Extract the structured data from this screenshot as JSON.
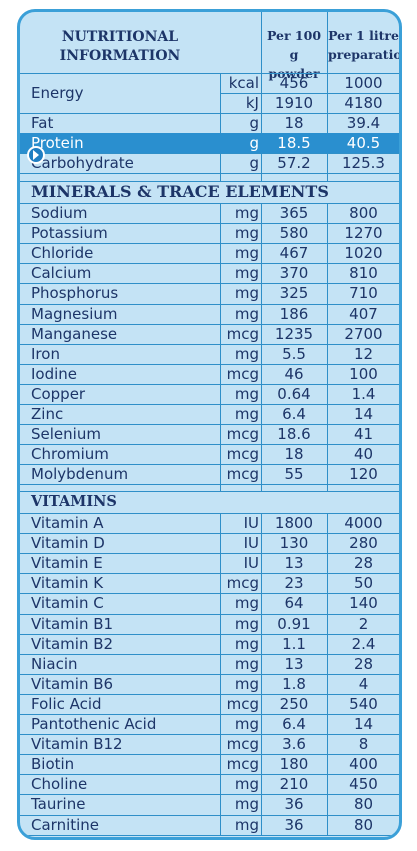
{
  "header": {
    "title_line1": "NUTRITIONAL",
    "title_line2": "INFORMATION",
    "col1_line1": "Per 100 g",
    "col1_line2": "powder",
    "col2_line1": "Per 1 litre",
    "col2_line2": "preparation"
  },
  "energy": {
    "name": "Energy",
    "rows": [
      {
        "unit": "kcal",
        "v1": "456",
        "v2": "1000"
      },
      {
        "unit": "kJ",
        "v1": "1910",
        "v2": "4180"
      }
    ]
  },
  "macros": [
    {
      "name": "Fat",
      "unit": "g",
      "v1": "18",
      "v2": "39.4"
    },
    {
      "name": "Protein",
      "unit": "g",
      "v1": "18.5",
      "v2": "40.5",
      "highlight": true
    },
    {
      "name": "Carbohydrate",
      "unit": "g",
      "v1": "57.2",
      "v2": "125.3"
    }
  ],
  "minerals_title": "MINERALS & TRACE ELEMENTS",
  "minerals": [
    {
      "name": "Sodium",
      "unit": "mg",
      "v1": "365",
      "v2": "800"
    },
    {
      "name": "Potassium",
      "unit": "mg",
      "v1": "580",
      "v2": "1270"
    },
    {
      "name": "Chloride",
      "unit": "mg",
      "v1": "467",
      "v2": "1020"
    },
    {
      "name": "Calcium",
      "unit": "mg",
      "v1": "370",
      "v2": "810"
    },
    {
      "name": "Phosphorus",
      "unit": "mg",
      "v1": "325",
      "v2": "710"
    },
    {
      "name": "Magnesium",
      "unit": "mg",
      "v1": "186",
      "v2": "407"
    },
    {
      "name": "Manganese",
      "unit": "mcg",
      "v1": "1235",
      "v2": "2700"
    },
    {
      "name": "Iron",
      "unit": "mg",
      "v1": "5.5",
      "v2": "12"
    },
    {
      "name": "Iodine",
      "unit": "mcg",
      "v1": "46",
      "v2": "100"
    },
    {
      "name": "Copper",
      "unit": "mg",
      "v1": "0.64",
      "v2": "1.4"
    },
    {
      "name": "Zinc",
      "unit": "mg",
      "v1": "6.4",
      "v2": "14"
    },
    {
      "name": "Selenium",
      "unit": "mcg",
      "v1": "18.6",
      "v2": "41"
    },
    {
      "name": "Chromium",
      "unit": "mcg",
      "v1": "18",
      "v2": "40"
    },
    {
      "name": "Molybdenum",
      "unit": "mcg",
      "v1": "55",
      "v2": "120"
    }
  ],
  "vitamins_title": "VITAMINS",
  "vitamins": [
    {
      "name": "Vitamin A",
      "unit": "IU",
      "v1": "1800",
      "v2": "4000"
    },
    {
      "name": "Vitamin D",
      "unit": "IU",
      "v1": "130",
      "v2": "280"
    },
    {
      "name": "Vitamin E",
      "unit": "IU",
      "v1": "13",
      "v2": "28"
    },
    {
      "name": "Vitamin K",
      "unit": "mcg",
      "v1": "23",
      "v2": "50"
    },
    {
      "name": "Vitamin C",
      "unit": "mg",
      "v1": "64",
      "v2": "140"
    },
    {
      "name": "Vitamin B1",
      "unit": "mg",
      "v1": "0.91",
      "v2": "2"
    },
    {
      "name": "Vitamin B2",
      "unit": "mg",
      "v1": "1.1",
      "v2": "2.4"
    },
    {
      "name": "Niacin",
      "unit": "mg",
      "v1": "13",
      "v2": "28"
    },
    {
      "name": "Vitamin B6",
      "unit": "mg",
      "v1": "1.8",
      "v2": "4"
    },
    {
      "name": "Folic Acid",
      "unit": "mcg",
      "v1": "250",
      "v2": "540"
    },
    {
      "name": "Pantothenic Acid",
      "unit": "mg",
      "v1": "6.4",
      "v2": "14"
    },
    {
      "name": "Vitamin B12",
      "unit": "mcg",
      "v1": "3.6",
      "v2": "8"
    },
    {
      "name": "Biotin",
      "unit": "mcg",
      "v1": "180",
      "v2": "400"
    },
    {
      "name": "Choline",
      "unit": "mg",
      "v1": "210",
      "v2": "450"
    },
    {
      "name": "Taurine",
      "unit": "mg",
      "v1": "36",
      "v2": "80"
    },
    {
      "name": "Carnitine",
      "unit": "mg",
      "v1": "36",
      "v2": "80"
    }
  ],
  "icons": {
    "highlight_marker": "chevron-right-icon"
  },
  "colors": {
    "panel_bg": "#c4e3f5",
    "border": "#3ba0d8",
    "highlight": "#2a8fcf",
    "text": "#1d3568"
  }
}
